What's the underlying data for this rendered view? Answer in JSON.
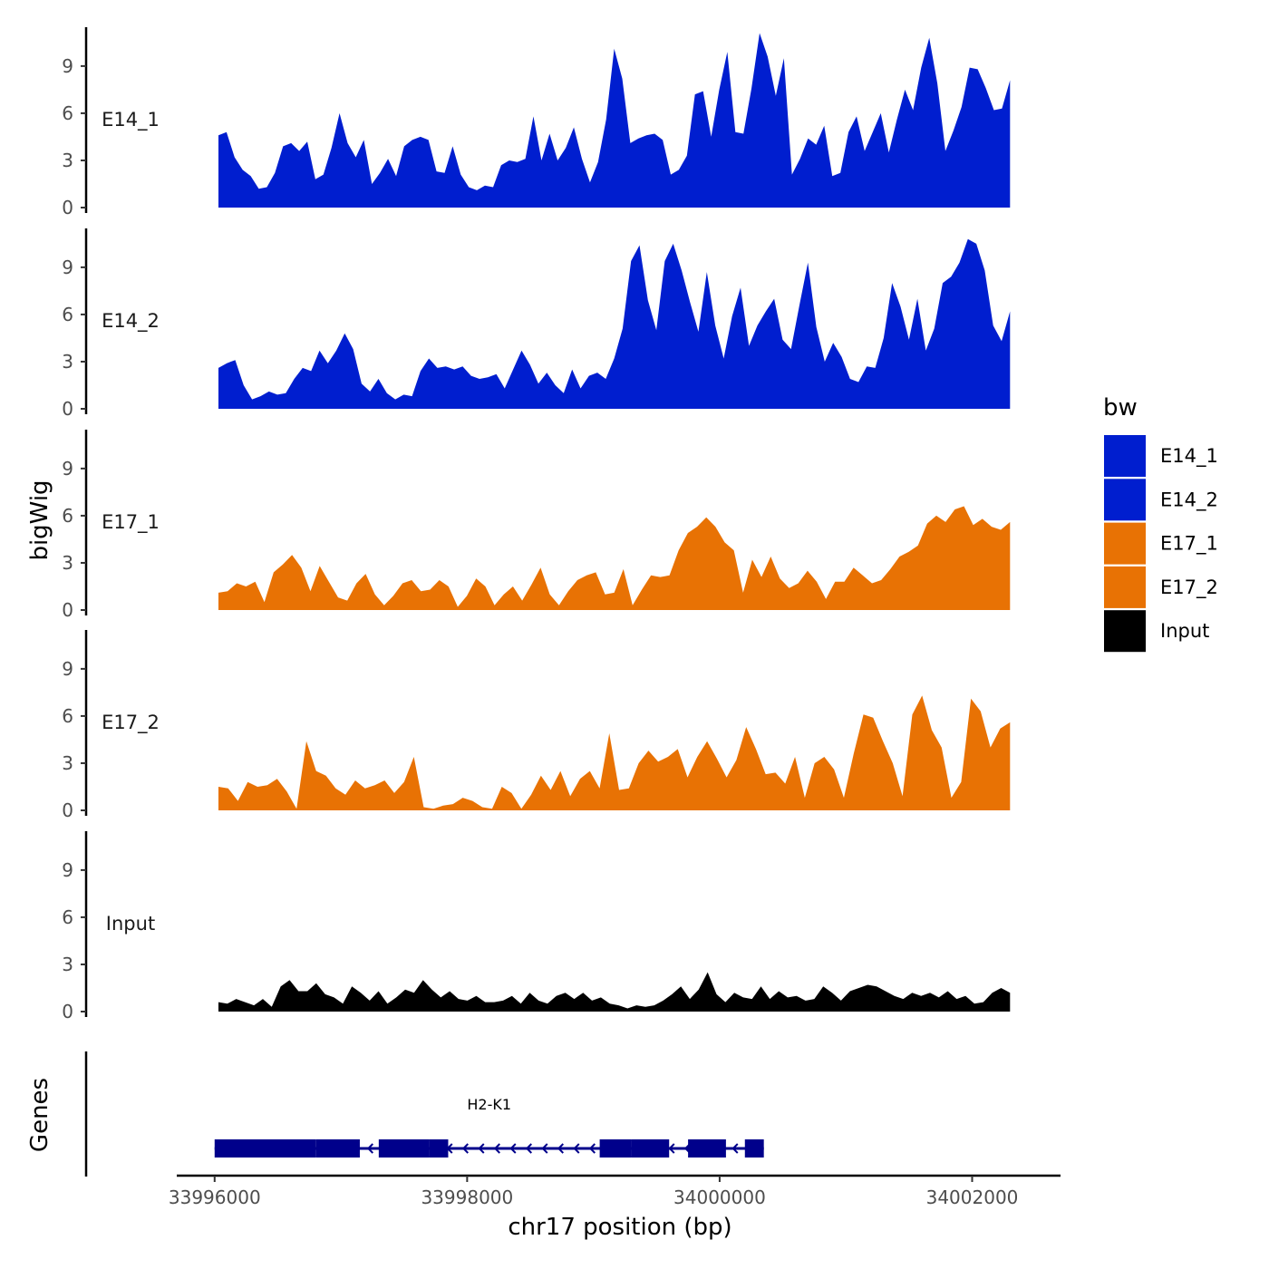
{
  "chart_data": {
    "type": "area",
    "title": "",
    "xlabel": "chr17 position (bp)",
    "ylabel": "bigWig",
    "genes_panel_label": "Genes",
    "xlim": [
      33995700,
      34002700
    ],
    "ylim": [
      0,
      11.3
    ],
    "x_ticks": [
      33996000,
      33998000,
      34000000,
      34002000
    ],
    "x_tick_labels": [
      "33996000",
      "33998000",
      "34000000",
      "34002000"
    ],
    "y_ticks": [
      0,
      3,
      6,
      9
    ],
    "y_tick_labels": [
      "0",
      "3",
      "6",
      "9"
    ],
    "legend": {
      "title": "bw",
      "position": "right",
      "entries": [
        {
          "label": "E14_1",
          "color": "#001ecf"
        },
        {
          "label": "E14_2",
          "color": "#001ecf"
        },
        {
          "label": "E17_1",
          "color": "#e87204"
        },
        {
          "label": "E17_2",
          "color": "#e87204"
        },
        {
          "label": "Input",
          "color": "#000000"
        }
      ]
    },
    "series": [
      {
        "name": "E14_1",
        "color": "#001ecf",
        "x_start": 33996030,
        "x_end": 34002300,
        "values": [
          4.6,
          4.8,
          3.2,
          2.4,
          2.0,
          1.2,
          1.3,
          2.2,
          3.9,
          4.1,
          3.6,
          4.2,
          1.8,
          2.1,
          3.8,
          6.0,
          4.1,
          3.2,
          4.3,
          1.5,
          2.2,
          3.1,
          2.0,
          3.9,
          4.3,
          4.5,
          4.3,
          2.3,
          2.2,
          3.9,
          2.1,
          1.3,
          1.1,
          1.4,
          1.3,
          2.7,
          3.0,
          2.9,
          3.1,
          5.8,
          3.0,
          4.7,
          3.0,
          3.8,
          5.1,
          3.1,
          1.6,
          2.9,
          5.6,
          10.1,
          8.2,
          4.1,
          4.4,
          4.6,
          4.7,
          4.3,
          2.1,
          2.4,
          3.3,
          7.2,
          7.4,
          4.5,
          7.5,
          9.9,
          4.8,
          4.7,
          7.6,
          11.1,
          9.6,
          7.1,
          9.5,
          2.1,
          3.1,
          4.4,
          4.0,
          5.2,
          2.0,
          2.2,
          4.8,
          5.8,
          3.6,
          4.8,
          6.0,
          3.5,
          5.6,
          7.5,
          6.2,
          8.9,
          10.8,
          7.9,
          3.6,
          4.9,
          6.4,
          8.9,
          8.8,
          7.6,
          6.2,
          6.3,
          8.1
        ]
      },
      {
        "name": "E14_2",
        "color": "#001ecf",
        "x_start": 33996030,
        "x_end": 34002300,
        "values": [
          2.6,
          2.9,
          3.1,
          1.5,
          0.6,
          0.8,
          1.1,
          0.9,
          1.0,
          1.9,
          2.6,
          2.4,
          3.7,
          2.9,
          3.7,
          4.8,
          3.8,
          1.6,
          1.1,
          1.9,
          1.0,
          0.6,
          0.9,
          0.8,
          2.4,
          3.2,
          2.6,
          2.7,
          2.5,
          2.7,
          2.1,
          1.9,
          2.0,
          2.2,
          1.3,
          2.5,
          3.7,
          2.8,
          1.6,
          2.3,
          1.5,
          1.0,
          2.5,
          1.3,
          2.1,
          2.3,
          1.9,
          3.2,
          5.1,
          9.4,
          10.4,
          6.9,
          5.0,
          9.4,
          10.5,
          8.8,
          6.8,
          4.9,
          8.7,
          5.3,
          3.2,
          5.9,
          7.7,
          4.0,
          5.3,
          6.2,
          7.0,
          4.4,
          3.8,
          6.6,
          9.3,
          5.2,
          3.0,
          4.2,
          3.3,
          1.9,
          1.7,
          2.7,
          2.6,
          4.5,
          8.0,
          6.5,
          4.4,
          7.0,
          3.7,
          5.1,
          8.0,
          8.4,
          9.3,
          10.8,
          10.5,
          8.8,
          5.3,
          4.3,
          6.2
        ]
      },
      {
        "name": "E17_1",
        "color": "#e87204",
        "x_start": 33996030,
        "x_end": 34002300,
        "values": [
          1.1,
          1.2,
          1.7,
          1.5,
          1.8,
          0.5,
          2.4,
          2.9,
          3.5,
          2.7,
          1.2,
          2.8,
          1.8,
          0.8,
          0.6,
          1.7,
          2.3,
          1.0,
          0.3,
          0.9,
          1.7,
          1.9,
          1.2,
          1.3,
          1.9,
          1.5,
          0.2,
          0.9,
          2.0,
          1.5,
          0.3,
          1.0,
          1.5,
          0.6,
          1.6,
          2.7,
          1.0,
          0.3,
          1.2,
          1.9,
          2.2,
          2.4,
          1.0,
          1.1,
          2.6,
          0.3,
          1.3,
          2.2,
          2.1,
          2.2,
          3.8,
          4.9,
          5.3,
          5.9,
          5.3,
          4.3,
          3.8,
          1.1,
          3.2,
          2.1,
          3.4,
          2.0,
          1.4,
          1.7,
          2.5,
          1.8,
          0.7,
          1.8,
          1.8,
          2.7,
          2.2,
          1.7,
          1.9,
          2.6,
          3.4,
          3.7,
          4.1,
          5.5,
          6.0,
          5.6,
          6.4,
          6.6,
          5.4,
          5.8,
          5.3,
          5.1,
          5.6
        ]
      },
      {
        "name": "E17_2",
        "color": "#e87204",
        "x_start": 33996030,
        "x_end": 34002300,
        "values": [
          1.5,
          1.4,
          0.6,
          1.8,
          1.5,
          1.6,
          2.0,
          1.2,
          0.1,
          4.4,
          2.5,
          2.2,
          1.4,
          1.0,
          1.9,
          1.4,
          1.6,
          1.9,
          1.1,
          1.8,
          3.4,
          0.2,
          0.1,
          0.3,
          0.4,
          0.8,
          0.6,
          0.2,
          0.1,
          1.5,
          1.1,
          0.1,
          1.0,
          2.2,
          1.3,
          2.5,
          0.9,
          2.0,
          2.5,
          1.4,
          4.9,
          1.3,
          1.4,
          3.0,
          3.8,
          3.1,
          3.4,
          3.9,
          2.1,
          3.4,
          4.4,
          3.3,
          2.1,
          3.2,
          5.3,
          3.9,
          2.3,
          2.4,
          1.7,
          3.4,
          0.8,
          3.0,
          3.4,
          2.6,
          0.8,
          3.6,
          6.1,
          5.9,
          4.4,
          3.0,
          0.9,
          6.1,
          7.3,
          5.1,
          4.0,
          0.8,
          1.8,
          7.1,
          6.3,
          4.0,
          5.2,
          5.6
        ]
      },
      {
        "name": "Input",
        "color": "#000000",
        "x_start": 33996030,
        "x_end": 34002300,
        "values": [
          0.6,
          0.5,
          0.8,
          0.6,
          0.4,
          0.8,
          0.3,
          1.6,
          2.0,
          1.3,
          1.3,
          1.8,
          1.1,
          0.9,
          0.5,
          1.6,
          1.2,
          0.7,
          1.3,
          0.5,
          0.9,
          1.4,
          1.2,
          2.0,
          1.4,
          0.9,
          1.3,
          0.8,
          0.7,
          1.0,
          0.6,
          0.6,
          0.7,
          1.0,
          0.5,
          1.2,
          0.7,
          0.5,
          1.0,
          1.2,
          0.8,
          1.2,
          0.7,
          0.9,
          0.5,
          0.4,
          0.2,
          0.4,
          0.3,
          0.4,
          0.7,
          1.1,
          1.6,
          0.8,
          1.4,
          2.5,
          1.1,
          0.6,
          1.2,
          0.9,
          0.8,
          1.6,
          0.8,
          1.3,
          0.9,
          1.0,
          0.7,
          0.8,
          1.6,
          1.2,
          0.7,
          1.3,
          1.5,
          1.7,
          1.6,
          1.3,
          1.0,
          0.8,
          1.2,
          1.0,
          1.2,
          0.9,
          1.3,
          0.8,
          1.0,
          0.5,
          0.6,
          1.2,
          1.5,
          1.2
        ]
      }
    ],
    "gene_track": {
      "gene_name": "H2-K1",
      "strand": "-",
      "color": "#00008b",
      "start": 33996000,
      "end": 34000350,
      "exons": [
        [
          33996000,
          33996800
        ],
        [
          33996800,
          33997150
        ],
        [
          33997300,
          33997700
        ],
        [
          33997700,
          33997850
        ],
        [
          33999050,
          33999300
        ],
        [
          33999300,
          33999600
        ],
        [
          33999750,
          34000050
        ],
        [
          34000200,
          34000350
        ]
      ]
    }
  }
}
